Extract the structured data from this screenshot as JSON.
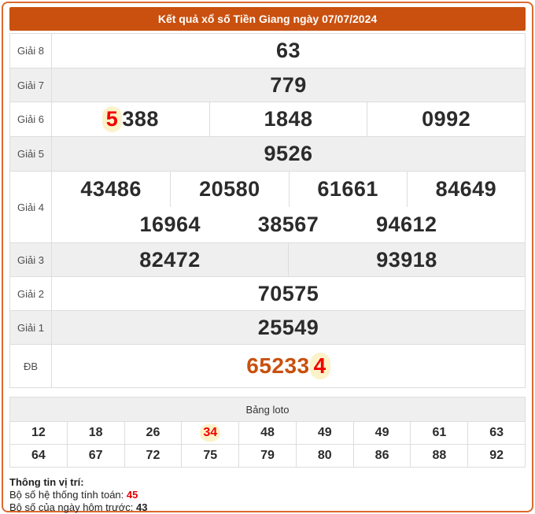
{
  "colors": {
    "header_bg": "#C9500E",
    "frame_border": "#DC6A2E",
    "row_alt_bg": "#EFEFEF",
    "cell_border": "#DDDDDD",
    "number_dark": "#2B2B2B",
    "highlight_red": "#F30000",
    "highlight_bg": "#FBF2C9",
    "special_orange": "#C9500E"
  },
  "header": {
    "title": "Kết quả xổ số Tiền Giang ngày 07/07/2024"
  },
  "prizes": {
    "g8": {
      "label": "Giải 8",
      "value": "63"
    },
    "g7": {
      "label": "Giải 7",
      "value": "779"
    },
    "g6": {
      "label": "Giải 6",
      "v1_hl": "5",
      "v1_rest": "388",
      "v2": "1848",
      "v3": "0992"
    },
    "g5": {
      "label": "Giải 5",
      "value": "9526"
    },
    "g4": {
      "label": "Giải 4",
      "v1": "43486",
      "v2": "20580",
      "v3": "61661",
      "v4": "84649",
      "v5": "16964",
      "v6": "38567",
      "v7": "94612"
    },
    "g3": {
      "label": "Giải 3",
      "v1": "82472",
      "v2": "93918"
    },
    "g2": {
      "label": "Giải 2",
      "value": "70575"
    },
    "g1": {
      "label": "Giải 1",
      "value": "25549"
    },
    "db": {
      "label": "ĐB",
      "main": "65233",
      "hl": "4"
    }
  },
  "loto": {
    "title": "Bảng loto",
    "row1": [
      "12",
      "18",
      "26",
      "34",
      "48",
      "49",
      "49",
      "61",
      "63"
    ],
    "row2": [
      "64",
      "67",
      "72",
      "75",
      "79",
      "80",
      "86",
      "88",
      "92"
    ],
    "highlighted_value": "34"
  },
  "info": {
    "title": "Thông tin vị trí:",
    "line1_label": "Bộ số hệ thống tính toán:",
    "line1_value": "45",
    "line2_label": "Bộ số của ngày hôm trước:",
    "line2_value": "43"
  }
}
